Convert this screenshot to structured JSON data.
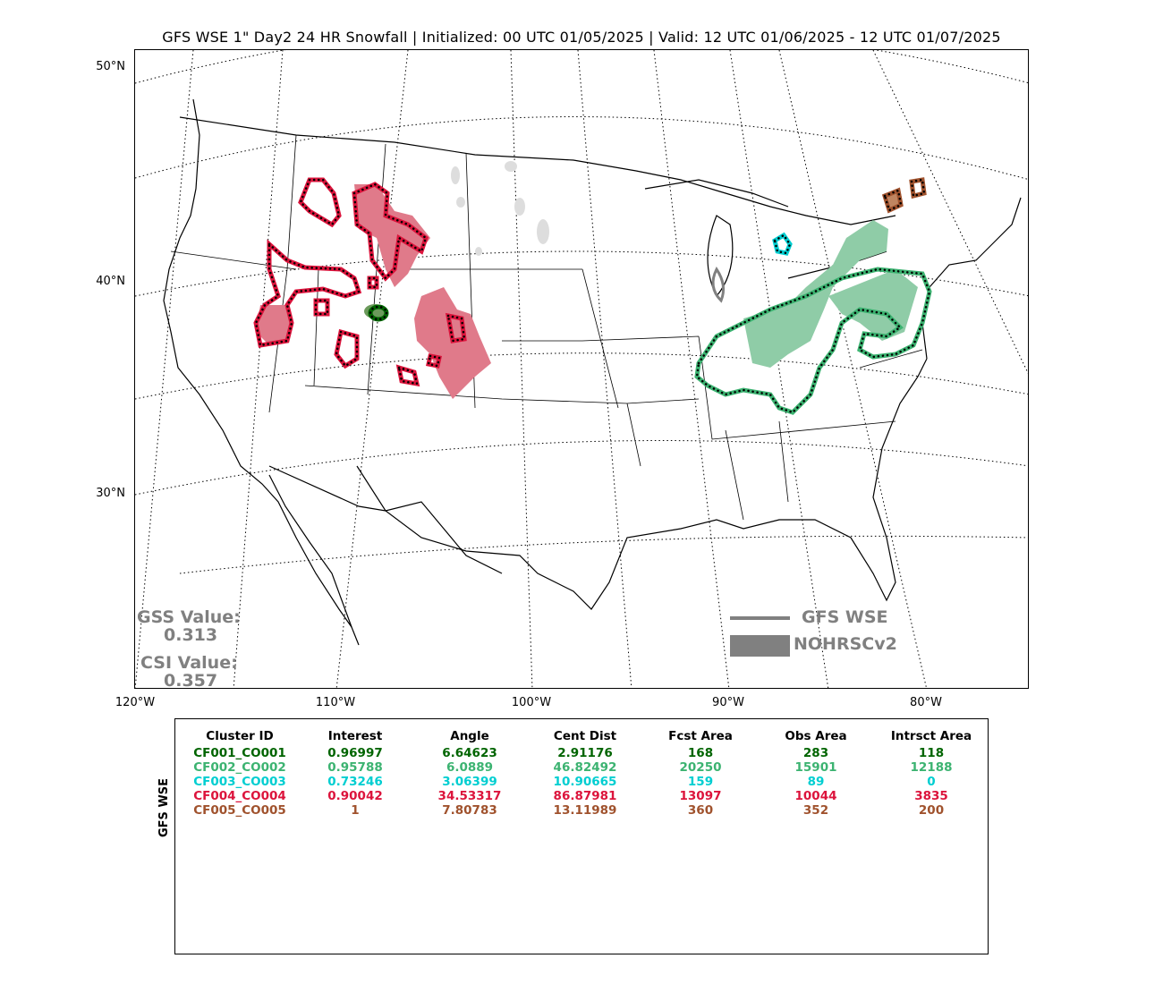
{
  "title": "GFS WSE 1\" Day2 24 HR Snowfall | Initialized: 00 UTC 01/05/2025 | Valid: 12 UTC 01/06/2025 - 12 UTC 01/07/2025",
  "lat_labels": [
    "50°N",
    "40°N",
    "30°N"
  ],
  "lon_labels": [
    "120°W",
    "110°W",
    "100°W",
    "90°W",
    "80°W"
  ],
  "scores": {
    "gss_label": "GSS Value:",
    "gss_value": "0.313",
    "csi_label": "CSI Value:",
    "csi_value": "0.357"
  },
  "legend": {
    "line_label": "GFS WSE",
    "fill_label": "NOHRSCv2",
    "color": "#808080"
  },
  "table": {
    "ylabel": "GFS WSE",
    "headers": [
      "Cluster ID",
      "Interest",
      "Angle",
      "Cent Dist",
      "Fcst Area",
      "Obs Area",
      "Intrsct Area"
    ],
    "rows": [
      {
        "color": "#006400",
        "cells": [
          "CF001_CO001",
          "0.96997",
          "6.64623",
          "2.91176",
          "168",
          "283",
          "118"
        ]
      },
      {
        "color": "#3cb371",
        "cells": [
          "CF002_CO002",
          "0.95788",
          "6.0889",
          "46.82492",
          "20250",
          "15901",
          "12188"
        ]
      },
      {
        "color": "#00ced1",
        "cells": [
          "CF003_CO003",
          "0.73246",
          "3.06399",
          "10.90665",
          "159",
          "89",
          "0"
        ]
      },
      {
        "color": "#dc143c",
        "cells": [
          "CF004_CO004",
          "0.90042",
          "34.53317",
          "86.87981",
          "13097",
          "10044",
          "3835"
        ]
      },
      {
        "color": "#a0522d",
        "cells": [
          "CF005_CO005",
          "1",
          "7.80783",
          "13.11989",
          "360",
          "352",
          "200"
        ]
      }
    ]
  },
  "map": {
    "cluster_colors": {
      "CF001": {
        "fill": "#6b9a5b",
        "line": "#006400"
      },
      "CF002": {
        "fill": "#8fcca7",
        "line": "#3cb371"
      },
      "CF003": {
        "fill": "#7de0e0",
        "line": "#00ced1"
      },
      "CF004": {
        "fill": "#e07a8a",
        "line": "#dc143c"
      },
      "CF005": {
        "fill": "#c08560",
        "line": "#a0522d"
      },
      "unmatched": {
        "fill": "#dddddd",
        "line": "#808080"
      }
    }
  }
}
